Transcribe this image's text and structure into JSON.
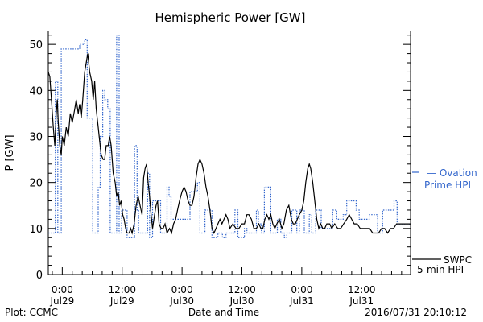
{
  "chart_data": {
    "type": "line",
    "title": "Hemispheric Power [GW]",
    "xlabel": "Date and Time",
    "ylabel": "P [GW]",
    "x_unit": "hours",
    "xlim": [
      -2.8,
      69.8
    ],
    "ylim": [
      0,
      53
    ],
    "y_ticks": [
      0,
      10,
      20,
      30,
      40,
      50
    ],
    "x_ticks": [
      {
        "x": 0,
        "time": "0:00",
        "date": "Jul29"
      },
      {
        "x": 12,
        "time": "12:00",
        "date": "Jul29"
      },
      {
        "x": 24,
        "time": "0:00",
        "date": "Jul30"
      },
      {
        "x": 36,
        "time": "12:00",
        "date": "Jul30"
      },
      {
        "x": 48,
        "time": "0:00",
        "date": "Jul31"
      },
      {
        "x": 60,
        "time": "12:00",
        "date": "Jul31"
      }
    ],
    "series": [
      {
        "name": "Ovation Prime HPI",
        "legend": [
          "— Ovation",
          "Prime HPI"
        ],
        "color": "#3366cc",
        "style": "dotted-step",
        "points": [
          [
            -2.8,
            9
          ],
          [
            -1.4,
            9
          ],
          [
            -1.4,
            42
          ],
          [
            -0.9,
            42
          ],
          [
            -0.9,
            9
          ],
          [
            -0.2,
            9
          ],
          [
            -0.2,
            49
          ],
          [
            1,
            49
          ],
          [
            3.5,
            49
          ],
          [
            3.5,
            50
          ],
          [
            4.5,
            50
          ],
          [
            4.5,
            51
          ],
          [
            5,
            51
          ],
          [
            5,
            34
          ],
          [
            6.1,
            34
          ],
          [
            6.1,
            9
          ],
          [
            7.2,
            9
          ],
          [
            7.2,
            19
          ],
          [
            7.6,
            19
          ],
          [
            7.6,
            30
          ],
          [
            8.1,
            30
          ],
          [
            8.1,
            40
          ],
          [
            8.5,
            40
          ],
          [
            8.5,
            38
          ],
          [
            9.1,
            38
          ],
          [
            9.1,
            36
          ],
          [
            9.6,
            36
          ],
          [
            9.6,
            9
          ],
          [
            10.9,
            9
          ],
          [
            10.9,
            52
          ],
          [
            11.4,
            52
          ],
          [
            11.4,
            9
          ],
          [
            11.9,
            9
          ],
          [
            11.9,
            14
          ],
          [
            13,
            14
          ],
          [
            13,
            8
          ],
          [
            14.5,
            8
          ],
          [
            14.5,
            28
          ],
          [
            15,
            28
          ],
          [
            15,
            14
          ],
          [
            15.3,
            14
          ],
          [
            15.3,
            9
          ],
          [
            17.1,
            9
          ],
          [
            17.1,
            22
          ],
          [
            17.5,
            22
          ],
          [
            17.5,
            8
          ],
          [
            18.1,
            8
          ],
          [
            18.1,
            16
          ],
          [
            19.7,
            16
          ],
          [
            19.7,
            9
          ],
          [
            21,
            9
          ],
          [
            21,
            19
          ],
          [
            21.4,
            19
          ],
          [
            21.4,
            17
          ],
          [
            21.8,
            17
          ],
          [
            21.8,
            12
          ],
          [
            25.6,
            12
          ],
          [
            25.6,
            18
          ],
          [
            27.1,
            18
          ],
          [
            27.1,
            20
          ],
          [
            27.6,
            20
          ],
          [
            27.6,
            9
          ],
          [
            28.6,
            9
          ],
          [
            28.6,
            14
          ],
          [
            30,
            14
          ],
          [
            30,
            8
          ],
          [
            31.2,
            8
          ],
          [
            31.2,
            9
          ],
          [
            32.1,
            9
          ],
          [
            32.1,
            8
          ],
          [
            32.8,
            8
          ],
          [
            32.8,
            9
          ],
          [
            34.6,
            9
          ],
          [
            34.6,
            14
          ],
          [
            35.2,
            14
          ],
          [
            35.2,
            8
          ],
          [
            36.5,
            8
          ],
          [
            36.5,
            10
          ],
          [
            37,
            10
          ],
          [
            37,
            9
          ],
          [
            38.9,
            9
          ],
          [
            38.9,
            14
          ],
          [
            39.3,
            14
          ],
          [
            39.3,
            11
          ],
          [
            39.9,
            11
          ],
          [
            39.9,
            9
          ],
          [
            40.5,
            9
          ],
          [
            40.5,
            19
          ],
          [
            41.8,
            19
          ],
          [
            41.8,
            9
          ],
          [
            43.1,
            9
          ],
          [
            43.1,
            12
          ],
          [
            43.8,
            12
          ],
          [
            43.8,
            9
          ],
          [
            44.5,
            9
          ],
          [
            44.5,
            8
          ],
          [
            45,
            8
          ],
          [
            45,
            9
          ],
          [
            46,
            9
          ],
          [
            46,
            14
          ],
          [
            47,
            14
          ],
          [
            47,
            9
          ],
          [
            47.5,
            9
          ],
          [
            47.5,
            14
          ],
          [
            48.5,
            14
          ],
          [
            48.5,
            9
          ],
          [
            49.5,
            9
          ],
          [
            49.5,
            13
          ],
          [
            50,
            13
          ],
          [
            50,
            9
          ],
          [
            50.8,
            9
          ],
          [
            50.8,
            14
          ],
          [
            51.9,
            14
          ],
          [
            51.9,
            10
          ],
          [
            54.2,
            10
          ],
          [
            54.2,
            14
          ],
          [
            55,
            14
          ],
          [
            55,
            12
          ],
          [
            56.3,
            12
          ],
          [
            56.3,
            13
          ],
          [
            57,
            13
          ],
          [
            57,
            16
          ],
          [
            58.9,
            16
          ],
          [
            58.9,
            14
          ],
          [
            59.5,
            14
          ],
          [
            59.5,
            12
          ],
          [
            61.5,
            12
          ],
          [
            61.5,
            13
          ],
          [
            63.2,
            13
          ],
          [
            63.2,
            9
          ],
          [
            64.2,
            9
          ],
          [
            64.2,
            14
          ],
          [
            66.5,
            14
          ],
          [
            66.5,
            16
          ],
          [
            67.1,
            16
          ],
          [
            67.1,
            11
          ],
          [
            69.8,
            11
          ]
        ]
      },
      {
        "name": "SWPC 5-min HPI",
        "legend": [
          "SWPC",
          "5-min HPI"
        ],
        "color": "#000000",
        "style": "solid",
        "points": [
          [
            -2.8,
            44
          ],
          [
            -2.5,
            43
          ],
          [
            -2.1,
            37
          ],
          [
            -1.8,
            32
          ],
          [
            -1.5,
            28
          ],
          [
            -1.2,
            35
          ],
          [
            -1,
            38
          ],
          [
            -0.8,
            33
          ],
          [
            -0.5,
            28
          ],
          [
            -0.2,
            26
          ],
          [
            0,
            30
          ],
          [
            0.4,
            28
          ],
          [
            0.8,
            32
          ],
          [
            1.2,
            30
          ],
          [
            1.6,
            35
          ],
          [
            2,
            33
          ],
          [
            2.5,
            36
          ],
          [
            2.8,
            38
          ],
          [
            3.2,
            35
          ],
          [
            3.5,
            37
          ],
          [
            3.8,
            34
          ],
          [
            4.1,
            38
          ],
          [
            4.5,
            44
          ],
          [
            4.8,
            46
          ],
          [
            5.1,
            48
          ],
          [
            5.5,
            44
          ],
          [
            5.9,
            42
          ],
          [
            6.2,
            38
          ],
          [
            6.5,
            42
          ],
          [
            6.8,
            36
          ],
          [
            7.2,
            32
          ],
          [
            7.5,
            29
          ],
          [
            7.8,
            26
          ],
          [
            8.2,
            25
          ],
          [
            8.5,
            25
          ],
          [
            8.8,
            28
          ],
          [
            9.2,
            28
          ],
          [
            9.5,
            30
          ],
          [
            9.8,
            28
          ],
          [
            10.2,
            22
          ],
          [
            10.6,
            20
          ],
          [
            10.9,
            17
          ],
          [
            11.2,
            18
          ],
          [
            11.5,
            15
          ],
          [
            11.8,
            16
          ],
          [
            12.1,
            13
          ],
          [
            12.4,
            12
          ],
          [
            12.7,
            10
          ],
          [
            13,
            9
          ],
          [
            13.4,
            9
          ],
          [
            13.7,
            10
          ],
          [
            14,
            9
          ],
          [
            14.4,
            11
          ],
          [
            14.8,
            15
          ],
          [
            15.2,
            17
          ],
          [
            15.6,
            15
          ],
          [
            16,
            13
          ],
          [
            16.3,
            21
          ],
          [
            16.6,
            23
          ],
          [
            16.9,
            24
          ],
          [
            17.2,
            20
          ],
          [
            17.5,
            17
          ],
          [
            17.8,
            13
          ],
          [
            18.1,
            10
          ],
          [
            18.5,
            13
          ],
          [
            18.8,
            15
          ],
          [
            19.1,
            16
          ],
          [
            19.4,
            11
          ],
          [
            19.8,
            10
          ],
          [
            20.2,
            10
          ],
          [
            20.6,
            11
          ],
          [
            21,
            9
          ],
          [
            21.5,
            10
          ],
          [
            21.9,
            9
          ],
          [
            22.3,
            11
          ],
          [
            22.7,
            12
          ],
          [
            23.1,
            14
          ],
          [
            23.5,
            16
          ],
          [
            24,
            18
          ],
          [
            24.4,
            19
          ],
          [
            24.8,
            18
          ],
          [
            25.2,
            16
          ],
          [
            25.6,
            15
          ],
          [
            26,
            15
          ],
          [
            26.4,
            17
          ],
          [
            26.8,
            21
          ],
          [
            27.2,
            24
          ],
          [
            27.6,
            25
          ],
          [
            28,
            24
          ],
          [
            28.4,
            22
          ],
          [
            28.8,
            19
          ],
          [
            29.2,
            17
          ],
          [
            29.6,
            14
          ],
          [
            30,
            10
          ],
          [
            30.4,
            9
          ],
          [
            30.8,
            10
          ],
          [
            31.2,
            11
          ],
          [
            31.6,
            12
          ],
          [
            32,
            11
          ],
          [
            32.4,
            12
          ],
          [
            32.8,
            13
          ],
          [
            33.2,
            12
          ],
          [
            33.6,
            10
          ],
          [
            34.2,
            11
          ],
          [
            34.8,
            10
          ],
          [
            35.4,
            10
          ],
          [
            36,
            11
          ],
          [
            36.5,
            11
          ],
          [
            37,
            13
          ],
          [
            37.4,
            13
          ],
          [
            37.9,
            12
          ],
          [
            38.4,
            10
          ],
          [
            38.9,
            10
          ],
          [
            39.4,
            11
          ],
          [
            39.8,
            10
          ],
          [
            40.2,
            10
          ],
          [
            40.6,
            12
          ],
          [
            41,
            13
          ],
          [
            41.4,
            12
          ],
          [
            41.8,
            13
          ],
          [
            42.2,
            11
          ],
          [
            42.6,
            10
          ],
          [
            43,
            11
          ],
          [
            43.5,
            12
          ],
          [
            44,
            10
          ],
          [
            44.4,
            11
          ],
          [
            44.9,
            14
          ],
          [
            45.4,
            15
          ],
          [
            45.9,
            12
          ],
          [
            46.3,
            11
          ],
          [
            46.7,
            11
          ],
          [
            47.1,
            12
          ],
          [
            47.5,
            13
          ],
          [
            48,
            14
          ],
          [
            48.4,
            16
          ],
          [
            48.8,
            20
          ],
          [
            49.2,
            23
          ],
          [
            49.5,
            24
          ],
          [
            49.8,
            23
          ],
          [
            50.2,
            20
          ],
          [
            50.6,
            16
          ],
          [
            51,
            12
          ],
          [
            51.4,
            10
          ],
          [
            51.8,
            11
          ],
          [
            52.2,
            10
          ],
          [
            52.6,
            10
          ],
          [
            53,
            11
          ],
          [
            53.6,
            11
          ],
          [
            54,
            10
          ],
          [
            54.6,
            11
          ],
          [
            55.2,
            10
          ],
          [
            55.8,
            10
          ],
          [
            56.4,
            11
          ],
          [
            57,
            12
          ],
          [
            57.5,
            13
          ],
          [
            58,
            12
          ],
          [
            58.5,
            11
          ],
          [
            59.1,
            11
          ],
          [
            59.7,
            10
          ],
          [
            60.3,
            10
          ],
          [
            61,
            10
          ],
          [
            61.6,
            10
          ],
          [
            62.2,
            9
          ],
          [
            62.8,
            9
          ],
          [
            63.4,
            9
          ],
          [
            64,
            10
          ],
          [
            64.6,
            10
          ],
          [
            65.2,
            9
          ],
          [
            65.8,
            10
          ],
          [
            66.4,
            10
          ],
          [
            67,
            11
          ],
          [
            67.6,
            11
          ],
          [
            68.2,
            11
          ],
          [
            69,
            11
          ],
          [
            69.8,
            11
          ]
        ]
      }
    ],
    "footer_left": "Plot: CCMC",
    "footer_right": "2016/07/31 20:10:12",
    "grid": false
  }
}
